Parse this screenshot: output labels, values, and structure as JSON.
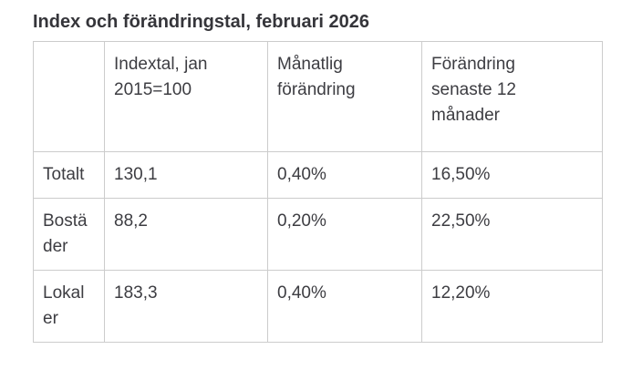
{
  "title": "Index och förändringstal, februari 2026",
  "table": {
    "headers": [
      "",
      "Indextal, jan\n2015=100",
      "Månatlig\nförändring",
      "Förändring\nsenaste 12\nmånader"
    ],
    "rows": [
      [
        "Totalt",
        "130,1",
        "0,40%",
        "16,50%"
      ],
      [
        "Bostä\nder",
        "88,2",
        "0,20%",
        "22,50%"
      ],
      [
        "Lokal\ner",
        "183,3",
        "0,40%",
        "12,20%"
      ]
    ]
  },
  "colors": {
    "text": "#3d3d42",
    "title_text": "#35353a",
    "border": "#cccccc",
    "background": "#ffffff"
  },
  "chart_data": {
    "type": "table",
    "title": "Index och förändringstal, februari 2026",
    "columns": [
      "",
      "Indextal, jan 2015=100",
      "Månatlig förändring",
      "Förändring senaste 12 månader"
    ],
    "categories": [
      "Totalt",
      "Bostäder",
      "Lokaler"
    ],
    "rows": [
      {
        "kategori": "Totalt",
        "indextal_jan_2015_100": 130.1,
        "manatlig_forandring_pct": 0.4,
        "forandring_senaste_12_manader_pct": 16.5
      },
      {
        "kategori": "Bostäder",
        "indextal_jan_2015_100": 88.2,
        "manatlig_forandring_pct": 0.2,
        "forandring_senaste_12_manader_pct": 22.5
      },
      {
        "kategori": "Lokaler",
        "indextal_jan_2015_100": 183.3,
        "manatlig_forandring_pct": 0.4,
        "forandring_senaste_12_manader_pct": 12.2
      }
    ],
    "value_format": "sv-SE decimal comma",
    "layout": {
      "grid": "full-borders",
      "header_bold": false
    }
  }
}
